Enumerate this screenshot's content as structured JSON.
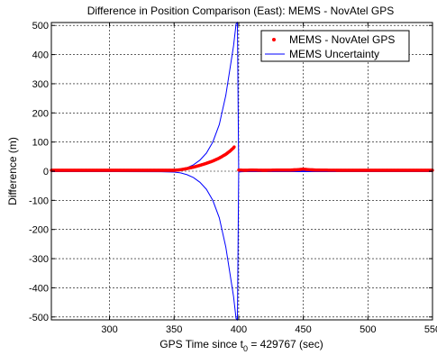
{
  "chart_data": {
    "type": "scatter",
    "title": "Difference in Position Comparison (East): MEMS - NovAtel GPS",
    "xlabel_prefix": "GPS Time since t",
    "xlabel_sub": "0",
    "xlabel_suffix": " = 429767 (sec)",
    "ylabel": "Difference (m)",
    "xlim": [
      255,
      550
    ],
    "ylim": [
      -510,
      510
    ],
    "xticks": [
      300,
      350,
      400,
      450,
      500,
      550
    ],
    "yticks": [
      -500,
      -400,
      -300,
      -200,
      -100,
      0,
      100,
      200,
      300,
      400,
      500
    ],
    "grid": "dotted",
    "legend_position": "top-right",
    "series": [
      {
        "name": "MEMS - NovAtel GPS",
        "marker": "dot",
        "color": "#ff0000",
        "x": [
          255,
          275,
          300,
          325,
          345,
          350,
          355,
          360,
          365,
          370,
          375,
          380,
          385,
          390,
          393,
          396,
          397,
          400,
          405,
          410,
          420,
          430,
          440,
          445,
          450,
          455,
          460,
          480,
          500,
          520,
          550
        ],
        "y": [
          3,
          3,
          3,
          3,
          3,
          3,
          5,
          9,
          14,
          20,
          27,
          35,
          45,
          58,
          68,
          80,
          86,
          4,
          3,
          4,
          3,
          4,
          4,
          5,
          7,
          5,
          4,
          3,
          3,
          3,
          3
        ]
      },
      {
        "name": "MEMS Uncertainty",
        "color": "#0000ff",
        "x": [
          255,
          300,
          340,
          350,
          355,
          360,
          365,
          370,
          375,
          380,
          385,
          390,
          393,
          396,
          398,
          399,
          400,
          402,
          405,
          410,
          420,
          450,
          500,
          550
        ],
        "upper": [
          1.5,
          1.5,
          2,
          3,
          6,
          12,
          22,
          38,
          62,
          100,
          160,
          260,
          345,
          430,
          505,
          510,
          3,
          2,
          1.5,
          1.5,
          1.5,
          1.5,
          1.5,
          1.5
        ],
        "lower": [
          -1.5,
          -1.5,
          -2,
          -3,
          -6,
          -12,
          -22,
          -38,
          -62,
          -100,
          -160,
          -260,
          -345,
          -430,
          -505,
          -510,
          -3,
          -2,
          -1.5,
          -1.5,
          -1.5,
          -1.5,
          -1.5,
          -1.5
        ]
      }
    ]
  }
}
